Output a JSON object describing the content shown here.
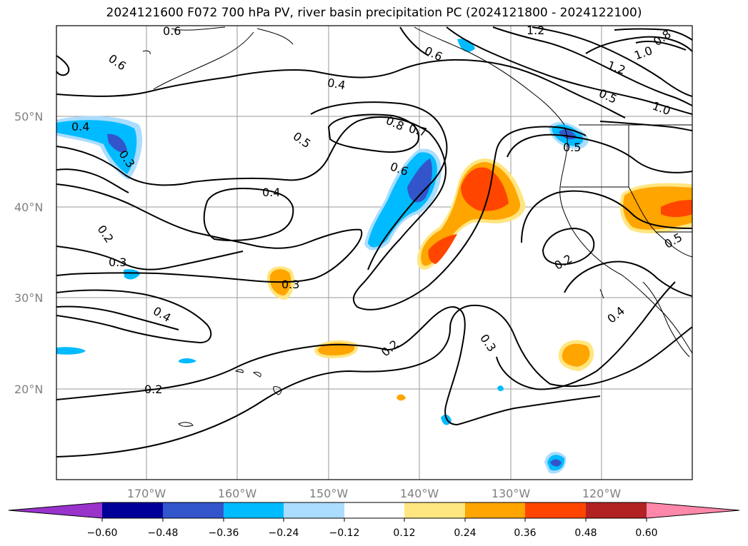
{
  "title": "2024121600 F072 700 hPa PV, river basin precipitation PC (2024121800 - 2024122100)",
  "lon_ticks": [
    "170°W",
    "160°W",
    "150°W",
    "140°W",
    "130°W",
    "120°W"
  ],
  "lat_ticks": [
    "50°N",
    "40°N",
    "30°N",
    "20°N"
  ],
  "contour_labels": [
    {
      "text": "0.6"
    },
    {
      "text": "0.6"
    },
    {
      "text": "0.4"
    },
    {
      "text": "0.6"
    },
    {
      "text": "1.2"
    },
    {
      "text": "1.0"
    },
    {
      "text": "0.8"
    },
    {
      "text": "1.2"
    },
    {
      "text": "0.5"
    },
    {
      "text": "1.0"
    },
    {
      "text": "0.4"
    },
    {
      "text": "0.3"
    },
    {
      "text": "0.5"
    },
    {
      "text": "0.8"
    },
    {
      "text": "0.7"
    },
    {
      "text": "0.6"
    },
    {
      "text": "0.4"
    },
    {
      "text": "0.2"
    },
    {
      "text": "0.3"
    },
    {
      "text": "0.3"
    },
    {
      "text": "0.4"
    },
    {
      "text": "0.2"
    },
    {
      "text": "0.2"
    },
    {
      "text": "0.3"
    },
    {
      "text": "0.2"
    },
    {
      "text": "0.4"
    },
    {
      "text": "0.5"
    },
    {
      "text": "0.5"
    }
  ],
  "colorbar": {
    "colors": [
      "#9933cc",
      "#000099",
      "#3355cc",
      "#00bbff",
      "#aaddff",
      "#ffffff",
      "#ffe680",
      "#ffa500",
      "#ff4500",
      "#b22222",
      "#ff88aa"
    ],
    "ticks": [
      "−0.60",
      "−0.48",
      "−0.36",
      "−0.24",
      "−0.12",
      "0.12",
      "0.24",
      "0.36",
      "0.48",
      "0.60"
    ]
  }
}
